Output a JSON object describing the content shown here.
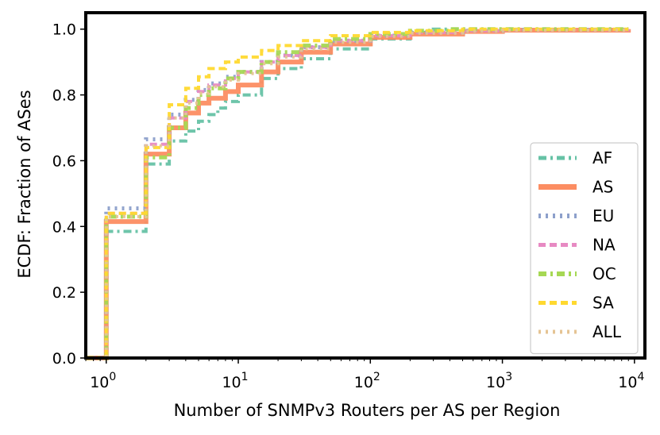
{
  "chart_data": {
    "type": "line",
    "subtype": "step-ecdf",
    "title": "",
    "xlabel": "Number of SNMPv3 Routers per AS per Region",
    "ylabel": "ECDF: Fraction of ASes",
    "xscale": "log",
    "xlim": [
      0.7,
      12000
    ],
    "ylim": [
      0.0,
      1.05
    ],
    "x_ticks": [
      {
        "value": 1,
        "base": "10",
        "exp": "0"
      },
      {
        "value": 10,
        "base": "10",
        "exp": "1"
      },
      {
        "value": 100,
        "base": "10",
        "exp": "2"
      },
      {
        "value": 1000,
        "base": "10",
        "exp": "3"
      },
      {
        "value": 10000,
        "base": "10",
        "exp": "4"
      }
    ],
    "y_ticks": [
      "0.0",
      "0.2",
      "0.4",
      "0.6",
      "0.8",
      "1.0"
    ],
    "legend_position": "lower-right",
    "grid": false,
    "series": [
      {
        "name": "AF",
        "color": "#66c2a5",
        "dash": "dashdot",
        "points": [
          [
            0.7,
            0
          ],
          [
            1,
            0.385
          ],
          [
            2,
            0.59
          ],
          [
            3,
            0.66
          ],
          [
            4,
            0.69
          ],
          [
            5,
            0.72
          ],
          [
            6,
            0.74
          ],
          [
            7,
            0.76
          ],
          [
            8,
            0.78
          ],
          [
            10,
            0.8
          ],
          [
            15,
            0.85
          ],
          [
            20,
            0.88
          ],
          [
            30,
            0.91
          ],
          [
            50,
            0.94
          ],
          [
            100,
            0.97
          ],
          [
            200,
            0.99
          ],
          [
            300,
            1.0
          ],
          [
            9000,
            1.0
          ]
        ]
      },
      {
        "name": "AS",
        "color": "#fc8d62",
        "dash": "solid",
        "points": [
          [
            0.7,
            0
          ],
          [
            1,
            0.415
          ],
          [
            2,
            0.62
          ],
          [
            3,
            0.7
          ],
          [
            4,
            0.745
          ],
          [
            5,
            0.775
          ],
          [
            6,
            0.79
          ],
          [
            8,
            0.81
          ],
          [
            10,
            0.83
          ],
          [
            15,
            0.87
          ],
          [
            20,
            0.9
          ],
          [
            30,
            0.93
          ],
          [
            50,
            0.955
          ],
          [
            100,
            0.975
          ],
          [
            200,
            0.985
          ],
          [
            500,
            0.993
          ],
          [
            1000,
            0.997
          ],
          [
            9000,
            1.0
          ]
        ]
      },
      {
        "name": "EU",
        "color": "#8da0cb",
        "dash": "dotted",
        "points": [
          [
            0.7,
            0
          ],
          [
            1,
            0.455
          ],
          [
            2,
            0.665
          ],
          [
            3,
            0.74
          ],
          [
            4,
            0.785
          ],
          [
            5,
            0.815
          ],
          [
            6,
            0.835
          ],
          [
            8,
            0.855
          ],
          [
            10,
            0.87
          ],
          [
            15,
            0.9
          ],
          [
            20,
            0.92
          ],
          [
            30,
            0.945
          ],
          [
            50,
            0.965
          ],
          [
            100,
            0.98
          ],
          [
            200,
            0.99
          ],
          [
            500,
            0.995
          ],
          [
            1000,
            0.998
          ],
          [
            9000,
            1.0
          ]
        ]
      },
      {
        "name": "NA",
        "color": "#e78ac3",
        "dash": "dashed",
        "points": [
          [
            0.7,
            0
          ],
          [
            1,
            0.44
          ],
          [
            2,
            0.65
          ],
          [
            3,
            0.73
          ],
          [
            4,
            0.78
          ],
          [
            5,
            0.81
          ],
          [
            6,
            0.83
          ],
          [
            8,
            0.85
          ],
          [
            10,
            0.87
          ],
          [
            15,
            0.9
          ],
          [
            20,
            0.92
          ],
          [
            30,
            0.945
          ],
          [
            50,
            0.965
          ],
          [
            100,
            0.98
          ],
          [
            200,
            0.99
          ],
          [
            500,
            0.995
          ],
          [
            1000,
            0.998
          ],
          [
            9000,
            1.0
          ]
        ]
      },
      {
        "name": "OC",
        "color": "#a6d854",
        "dash": "dashdot",
        "points": [
          [
            0.7,
            0
          ],
          [
            1,
            0.43
          ],
          [
            2,
            0.61
          ],
          [
            3,
            0.7
          ],
          [
            4,
            0.76
          ],
          [
            5,
            0.8
          ],
          [
            6,
            0.82
          ],
          [
            8,
            0.85
          ],
          [
            10,
            0.87
          ],
          [
            15,
            0.9
          ],
          [
            20,
            0.93
          ],
          [
            30,
            0.95
          ],
          [
            50,
            0.97
          ],
          [
            100,
            0.985
          ],
          [
            200,
            0.995
          ],
          [
            400,
            1.0
          ],
          [
            9000,
            1.0
          ]
        ]
      },
      {
        "name": "SA",
        "color": "#ffd92f",
        "dash": "dashed",
        "points": [
          [
            0.7,
            0
          ],
          [
            1,
            0.44
          ],
          [
            2,
            0.64
          ],
          [
            3,
            0.77
          ],
          [
            4,
            0.82
          ],
          [
            5,
            0.855
          ],
          [
            6,
            0.88
          ],
          [
            8,
            0.9
          ],
          [
            10,
            0.915
          ],
          [
            15,
            0.935
          ],
          [
            20,
            0.95
          ],
          [
            30,
            0.965
          ],
          [
            50,
            0.98
          ],
          [
            100,
            0.99
          ],
          [
            200,
            0.995
          ],
          [
            500,
            1.0
          ],
          [
            9000,
            1.0
          ]
        ]
      },
      {
        "name": "ALL",
        "color": "#e5c494",
        "dash": "dotted",
        "points": [
          [
            0.7,
            0
          ],
          [
            1,
            0.43
          ],
          [
            2,
            0.645
          ],
          [
            3,
            0.73
          ],
          [
            4,
            0.775
          ],
          [
            5,
            0.805
          ],
          [
            6,
            0.825
          ],
          [
            8,
            0.845
          ],
          [
            10,
            0.865
          ],
          [
            15,
            0.895
          ],
          [
            20,
            0.915
          ],
          [
            30,
            0.94
          ],
          [
            50,
            0.96
          ],
          [
            100,
            0.978
          ],
          [
            200,
            0.988
          ],
          [
            500,
            0.994
          ],
          [
            1000,
            0.997
          ],
          [
            9000,
            1.0
          ]
        ]
      }
    ]
  }
}
